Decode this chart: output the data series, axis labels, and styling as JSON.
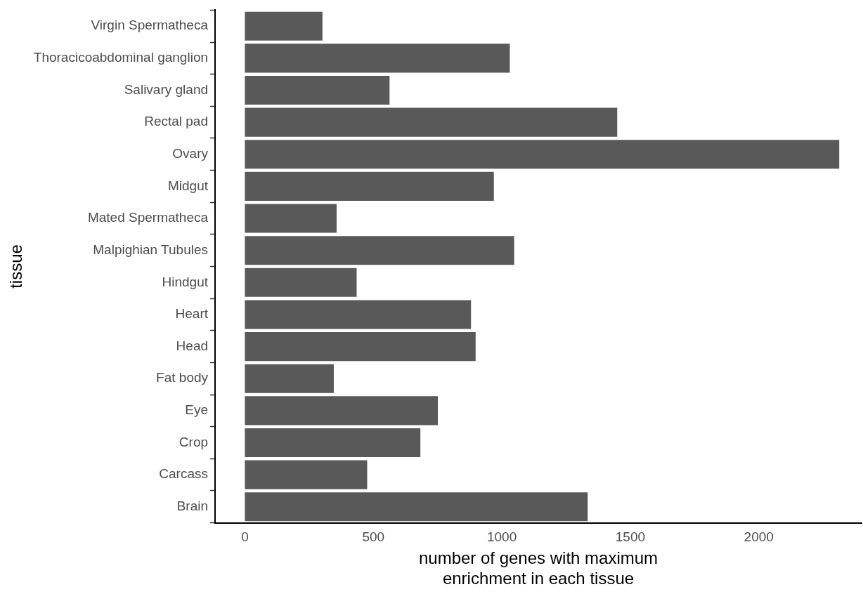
{
  "chart_data": {
    "type": "bar",
    "orientation": "horizontal",
    "xlabel": "number of genes with maximum\nenrichment in each tissue",
    "ylabel": "tissue",
    "categories": [
      "Virgin Spermatheca",
      "Thoracicoabdominal ganglion",
      "Salivary gland",
      "Rectal pad",
      "Ovary",
      "Midgut",
      "Mated Spermatheca",
      "Malpighian Tubules",
      "Hindgut",
      "Heart",
      "Head",
      "Fat body",
      "Eye",
      "Crop",
      "Carcass",
      "Brain"
    ],
    "values": [
      302,
      1031,
      563,
      1449,
      2313,
      969,
      357,
      1048,
      435,
      880,
      898,
      346,
      751,
      683,
      476,
      1334
    ],
    "color": "#595959",
    "xlim": [
      -116,
      2400
    ],
    "xticks": [
      0,
      500,
      1000,
      1500,
      2000
    ],
    "grid": false,
    "legend": false
  }
}
